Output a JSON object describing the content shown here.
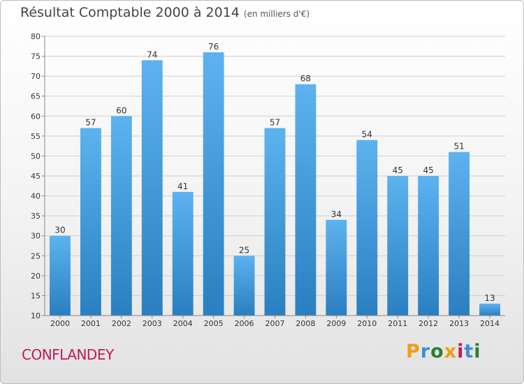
{
  "header": {
    "title": "Résultat Comptable 2000 à 2014",
    "subtitle": "(en milliers d'€)"
  },
  "footer": {
    "place": "CONFLANDEY",
    "brand": "Proxiti",
    "brand_letters": [
      "P",
      "r",
      "o",
      "x",
      "i",
      "t",
      "i"
    ]
  },
  "colors": {
    "bar_light": "#5cb3ef",
    "bar_dark": "#2a7fc0",
    "grid": "#cfcfcf",
    "axis": "#888888",
    "place": "#c2185b"
  },
  "chart_data": {
    "type": "bar",
    "title": "Résultat Comptable 2000 à 2014",
    "subtitle": "(en milliers d'€)",
    "xlabel": "",
    "ylabel": "",
    "categories": [
      "2000",
      "2001",
      "2002",
      "2003",
      "2004",
      "2005",
      "2006",
      "2007",
      "2008",
      "2009",
      "2010",
      "2011",
      "2012",
      "2013",
      "2014"
    ],
    "values": [
      30,
      57,
      60,
      74,
      41,
      76,
      25,
      57,
      68,
      34,
      54,
      45,
      45,
      51,
      13
    ],
    "ylim": [
      10,
      80
    ],
    "yticks": [
      10,
      15,
      20,
      25,
      30,
      35,
      40,
      45,
      50,
      55,
      60,
      65,
      70,
      75,
      80
    ],
    "grid": true,
    "legend": "none"
  }
}
